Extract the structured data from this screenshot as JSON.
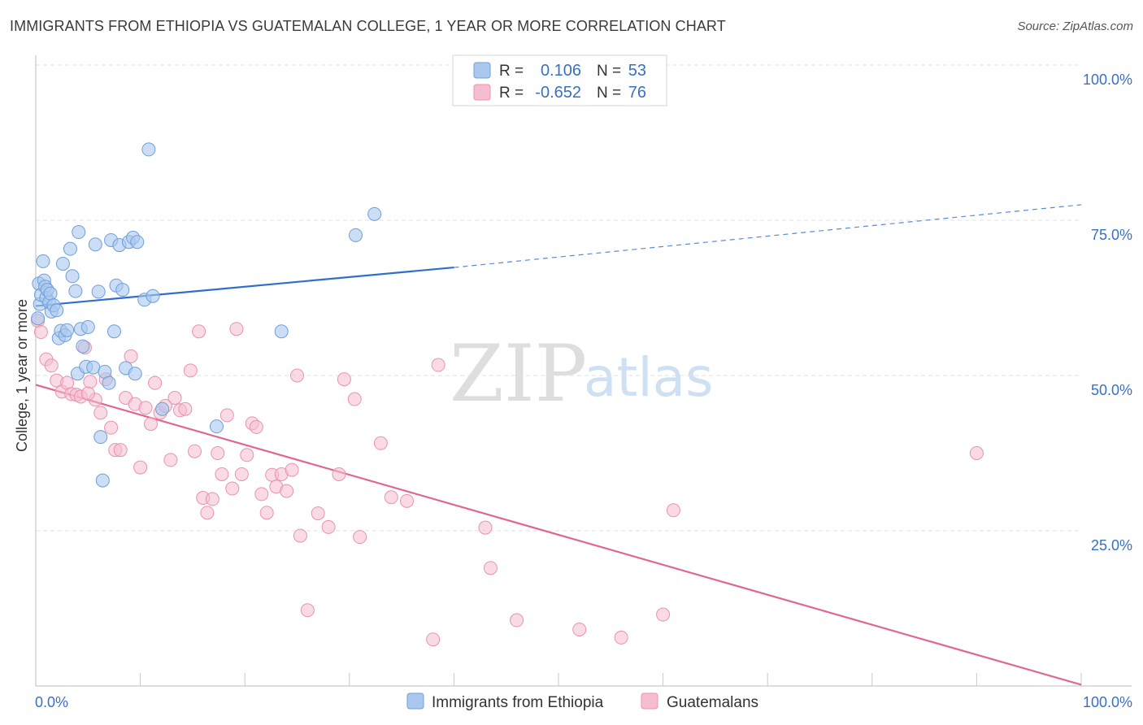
{
  "title": "IMMIGRANTS FROM ETHIOPIA VS GUATEMALAN COLLEGE, 1 YEAR OR MORE CORRELATION CHART",
  "source": "Source: ZipAtlas.com",
  "watermark": {
    "zip": "ZIP",
    "atlas": "atlas"
  },
  "colors": {
    "blue_fill": "#a9c8ef",
    "blue_stroke": "#6f9fd8",
    "blue_line": "#2f6fcc",
    "pink_fill": "#f6bcd0",
    "pink_stroke": "#e893b0",
    "pink_line": "#e06693",
    "tick_label": "#3a6fc4",
    "grid": "#e2e2e2"
  },
  "legend": {
    "series": [
      {
        "r_label": "R =",
        "r_value": "0.106",
        "n_label": "N =",
        "n_value": "53"
      },
      {
        "r_label": "R =",
        "r_value": "-0.652",
        "n_label": "N =",
        "n_value": "76"
      }
    ]
  },
  "bottom_legend": [
    "Immigrants from Ethiopia",
    "Guatemalans"
  ],
  "chart_data": {
    "type": "scatter",
    "title": "IMMIGRANTS FROM ETHIOPIA VS GUATEMALAN COLLEGE, 1 YEAR OR MORE CORRELATION CHART",
    "xlabel": "",
    "ylabel": "College, 1 year or more",
    "xlim": [
      0,
      100
    ],
    "ylim": [
      0,
      100
    ],
    "x_tick_labels": [
      "0.0%",
      "100.0%"
    ],
    "y_ticks": [
      25,
      50,
      75,
      100
    ],
    "y_tick_labels": [
      "25.0%",
      "50.0%",
      "75.0%",
      "100.0%"
    ],
    "grid": true,
    "series": [
      {
        "name": "Immigrants from Ethiopia",
        "r": 0.106,
        "n": 53,
        "trend": {
          "x0": 0,
          "y0": 61.2,
          "x1": 40,
          "y1": 67.4,
          "dash_to_x": 100,
          "dash_to_y": 77.5
        },
        "points": [
          [
            0.3,
            64.8
          ],
          [
            0.4,
            61.5
          ],
          [
            0.5,
            63.0
          ],
          [
            0.7,
            68.4
          ],
          [
            0.8,
            65.3
          ],
          [
            0.9,
            64.3
          ],
          [
            1.0,
            62.5
          ],
          [
            1.1,
            63.8
          ],
          [
            1.3,
            61.8
          ],
          [
            1.4,
            63.2
          ],
          [
            1.5,
            60.3
          ],
          [
            1.7,
            61.3
          ],
          [
            2.0,
            60.5
          ],
          [
            2.2,
            56.0
          ],
          [
            2.4,
            57.2
          ],
          [
            2.6,
            68.0
          ],
          [
            2.8,
            56.5
          ],
          [
            3.0,
            57.3
          ],
          [
            3.3,
            70.4
          ],
          [
            3.5,
            66.0
          ],
          [
            3.8,
            63.6
          ],
          [
            4.0,
            50.3
          ],
          [
            4.1,
            73.1
          ],
          [
            4.3,
            57.5
          ],
          [
            4.5,
            54.7
          ],
          [
            4.8,
            51.4
          ],
          [
            5.0,
            57.8
          ],
          [
            5.5,
            51.3
          ],
          [
            5.7,
            71.1
          ],
          [
            6.0,
            63.5
          ],
          [
            6.2,
            40.1
          ],
          [
            6.4,
            33.1
          ],
          [
            6.6,
            50.6
          ],
          [
            7.0,
            48.8
          ],
          [
            7.2,
            71.8
          ],
          [
            7.5,
            57.1
          ],
          [
            7.7,
            64.5
          ],
          [
            8.0,
            71.0
          ],
          [
            8.3,
            63.8
          ],
          [
            8.6,
            51.2
          ],
          [
            8.9,
            71.5
          ],
          [
            9.3,
            72.2
          ],
          [
            9.5,
            50.3
          ],
          [
            9.7,
            71.5
          ],
          [
            10.4,
            62.2
          ],
          [
            10.8,
            86.4
          ],
          [
            11.2,
            62.8
          ],
          [
            12.1,
            44.6
          ],
          [
            17.3,
            41.8
          ],
          [
            23.5,
            57.1
          ],
          [
            30.6,
            72.6
          ],
          [
            32.4,
            76.0
          ],
          [
            0.2,
            59.2
          ]
        ]
      },
      {
        "name": "Guatemalans",
        "r": -0.652,
        "n": 76,
        "trend": {
          "x0": 0,
          "y0": 48.5,
          "x1": 100,
          "y1": 0.2
        },
        "points": [
          [
            0.2,
            58.8
          ],
          [
            0.5,
            57.0
          ],
          [
            1.0,
            52.6
          ],
          [
            1.5,
            51.6
          ],
          [
            2.0,
            49.2
          ],
          [
            2.5,
            47.4
          ],
          [
            3.0,
            48.8
          ],
          [
            3.4,
            47.0
          ],
          [
            3.9,
            46.9
          ],
          [
            4.3,
            46.6
          ],
          [
            4.7,
            54.5
          ],
          [
            5.2,
            49.0
          ],
          [
            5.7,
            46.1
          ],
          [
            6.2,
            44.0
          ],
          [
            6.7,
            49.4
          ],
          [
            7.2,
            41.6
          ],
          [
            7.6,
            38.0
          ],
          [
            8.1,
            38.0
          ],
          [
            8.6,
            46.4
          ],
          [
            9.1,
            53.1
          ],
          [
            9.5,
            45.4
          ],
          [
            10.0,
            35.2
          ],
          [
            10.5,
            44.8
          ],
          [
            11.0,
            42.2
          ],
          [
            11.4,
            48.8
          ],
          [
            11.9,
            44.0
          ],
          [
            12.4,
            45.1
          ],
          [
            12.9,
            36.4
          ],
          [
            13.3,
            46.4
          ],
          [
            13.8,
            44.4
          ],
          [
            14.3,
            44.6
          ],
          [
            14.8,
            50.8
          ],
          [
            15.2,
            37.8
          ],
          [
            15.6,
            57.1
          ],
          [
            16.0,
            30.3
          ],
          [
            16.4,
            27.9
          ],
          [
            16.9,
            30.1
          ],
          [
            17.4,
            37.5
          ],
          [
            17.8,
            34.1
          ],
          [
            18.3,
            43.6
          ],
          [
            18.8,
            31.8
          ],
          [
            19.2,
            57.5
          ],
          [
            19.7,
            34.1
          ],
          [
            20.2,
            37.2
          ],
          [
            20.7,
            42.3
          ],
          [
            21.1,
            41.7
          ],
          [
            21.6,
            30.9
          ],
          [
            22.1,
            27.9
          ],
          [
            22.6,
            34.0
          ],
          [
            23.0,
            32.1
          ],
          [
            23.5,
            34.1
          ],
          [
            24.0,
            31.4
          ],
          [
            24.5,
            34.8
          ],
          [
            25.0,
            50.0
          ],
          [
            25.3,
            24.2
          ],
          [
            26.0,
            12.2
          ],
          [
            27.0,
            27.8
          ],
          [
            28.0,
            25.6
          ],
          [
            29.0,
            34.1
          ],
          [
            29.5,
            49.4
          ],
          [
            30.5,
            46.2
          ],
          [
            31.0,
            24.0
          ],
          [
            33.0,
            39.1
          ],
          [
            34.0,
            30.4
          ],
          [
            35.5,
            29.8
          ],
          [
            38.0,
            7.5
          ],
          [
            38.5,
            51.7
          ],
          [
            43.0,
            25.5
          ],
          [
            43.5,
            19.0
          ],
          [
            46.0,
            10.6
          ],
          [
            52.0,
            9.1
          ],
          [
            56.0,
            7.8
          ],
          [
            60.0,
            11.5
          ],
          [
            61.0,
            28.3
          ],
          [
            90.0,
            37.5
          ],
          [
            5.0,
            47.1
          ]
        ]
      }
    ]
  }
}
